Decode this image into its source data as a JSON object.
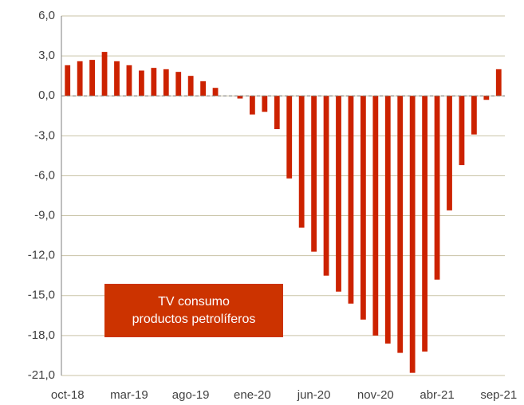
{
  "chart_data": {
    "type": "bar",
    "categories": [
      "oct-18",
      null,
      null,
      null,
      null,
      "mar-19",
      null,
      null,
      null,
      null,
      "ago-19",
      null,
      null,
      null,
      null,
      "ene-20",
      null,
      null,
      null,
      null,
      "jun-20",
      null,
      null,
      null,
      null,
      "nov-20",
      null,
      null,
      null,
      null,
      "abr-21",
      null,
      null,
      null,
      null,
      "sep-21"
    ],
    "values": [
      2.3,
      2.6,
      2.7,
      3.3,
      2.6,
      2.3,
      1.9,
      2.1,
      2.0,
      1.8,
      1.5,
      1.1,
      0.6,
      0.0,
      -0.2,
      -1.4,
      -1.2,
      -2.5,
      -6.2,
      -9.9,
      -11.7,
      -13.5,
      -14.7,
      -15.6,
      -16.8,
      -18.0,
      -18.6,
      -19.3,
      -20.8,
      -19.2,
      -13.8,
      -8.6,
      -5.2,
      -2.9,
      -0.3,
      2.0
    ],
    "color": "#cc2200",
    "ylim": [
      -21,
      6
    ],
    "yticks": [
      {
        "value": -21,
        "label": "-21,0"
      },
      {
        "value": -18,
        "label": "-18,0"
      },
      {
        "value": -15,
        "label": "-15,0"
      },
      {
        "value": -12,
        "label": "-12,0"
      },
      {
        "value": -9,
        "label": "-9,0"
      },
      {
        "value": -6,
        "label": "-6,0"
      },
      {
        "value": -3,
        "label": "-3,0"
      },
      {
        "value": 0,
        "label": "0,0"
      },
      {
        "value": 3,
        "label": "3,0"
      },
      {
        "value": 6,
        "label": "6,0"
      }
    ],
    "grid": true,
    "annotation": [
      "TV consumo",
      "productos petrolíferos"
    ],
    "annotation_color": "#cc3300"
  }
}
